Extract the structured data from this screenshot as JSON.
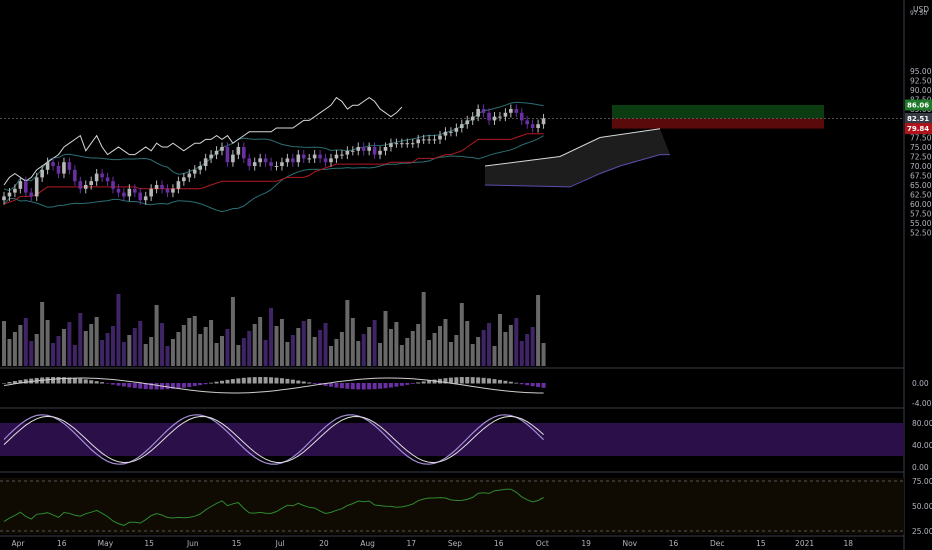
{
  "currency_label": "USD",
  "colors": {
    "background": "#000000",
    "bull": "#b8b8b8",
    "bear": "#6a2fa3",
    "bb": "#2b6f73",
    "ichimoku_line": "#d8d8d8",
    "base_line": "#b21a22",
    "cloud": "#2a2a2a",
    "cloud_edge": "#5a4fb0",
    "target_zone": "#0c3d12",
    "stop_zone": "#5a0a0a",
    "stoch_band": "#2b0f48",
    "stoch_k": "#a58cd8",
    "stoch_d": "#e0e0e0",
    "rsi": "#2e8a2e",
    "rsi_band": "#0f0b03",
    "grid_sep": "#2a2e39"
  },
  "price_axis": {
    "ticks": [
      "95.00",
      "92.50",
      "90.00",
      "87.50",
      "85.00",
      "82.50",
      "80.00",
      "77.50",
      "75.00",
      "72.50",
      "70.00",
      "67.50",
      "65.00",
      "62.50",
      "60.00",
      "57.50",
      "55.00",
      "52.50"
    ],
    "top_partial": "97.50",
    "badges": [
      {
        "label": "86.06",
        "value": 86.06,
        "color": "#1e7a2a"
      },
      {
        "label": "82.51",
        "value": 82.51,
        "color": "#363a45"
      },
      {
        "label": "79.84",
        "value": 79.84,
        "color": "#b0131b"
      }
    ]
  },
  "macd_axis": {
    "ticks": [
      "0.00",
      "-4.00"
    ]
  },
  "stoch_axis": {
    "ticks": [
      "80.00",
      "40.00",
      "0.00"
    ]
  },
  "rsi_axis": {
    "ticks": [
      "75.00",
      "50.00",
      "25.00"
    ]
  },
  "time_axis": {
    "labels": [
      "Apr",
      "16",
      "May",
      "15",
      "Jun",
      "15",
      "Jul",
      "20",
      "Aug",
      "17",
      "Sep",
      "16",
      "Oct",
      "19",
      "Nov",
      "16",
      "Dec",
      "15",
      "2021",
      "18"
    ]
  },
  "chart_data": {
    "type": "candlestick",
    "current_price": 82.51,
    "target_price": 86.06,
    "stop_price": 79.84,
    "closes": [
      62,
      63,
      64,
      66,
      63,
      62,
      67,
      69,
      71,
      70,
      68,
      71,
      69,
      66,
      64,
      65,
      66,
      68,
      67,
      66,
      64,
      63,
      62,
      64,
      63,
      61,
      62,
      64,
      65,
      64,
      63,
      64,
      66,
      67,
      68,
      69,
      70,
      72,
      73,
      74,
      75,
      71,
      73,
      75,
      72,
      70,
      71,
      72,
      71,
      70,
      70,
      71,
      72,
      71,
      73,
      72,
      72,
      73,
      72,
      71,
      72,
      73,
      73,
      74,
      74,
      75,
      74,
      75,
      73,
      74,
      75,
      76,
      76,
      76,
      76,
      76,
      77,
      77,
      77,
      77,
      78,
      79,
      79,
      80,
      81,
      82,
      83,
      85,
      84,
      82,
      83,
      83,
      84,
      85,
      84,
      82,
      81,
      80,
      81,
      82.51
    ]
  }
}
